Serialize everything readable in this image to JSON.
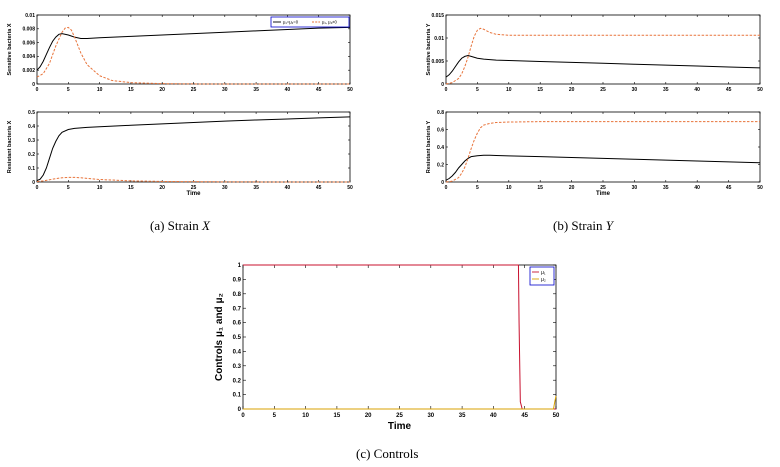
{
  "figure": {
    "captions": {
      "a_prefix": "(a)  Strain ",
      "a_var": "X",
      "b_prefix": "(b)  Strain ",
      "b_var": "Y",
      "c": "(c)  Controls"
    },
    "colors": {
      "black": "#000000",
      "orange": "#e8743b",
      "red": "#c8102e",
      "gold": "#d9a000",
      "legend_border": "#0000cc"
    }
  },
  "chart_data": [
    {
      "id": "a-top",
      "type": "line",
      "ylabel": "Sensitive bacteria X",
      "xlabel": "",
      "xlim": [
        0,
        50
      ],
      "ylim": [
        0,
        0.01
      ],
      "xticks": [
        0,
        5,
        10,
        15,
        20,
        25,
        30,
        35,
        40,
        45,
        50
      ],
      "yticks": [
        0,
        0.002,
        0.004,
        0.006,
        0.008,
        0.01
      ],
      "ytick_labels": [
        "0",
        "0.002",
        "0.004",
        "0.006",
        "0.008",
        "0.01"
      ],
      "legend": [
        "μ₁=μ₂=0",
        "μ₁, μ₂≠0"
      ],
      "series": [
        {
          "name": "μ₁=μ₂=0",
          "style": "solid",
          "color": "#000000",
          "x": [
            0,
            0.5,
            1,
            1.5,
            2,
            2.5,
            3,
            3.5,
            4,
            5,
            6,
            7,
            8,
            10,
            15,
            20,
            25,
            30,
            35,
            40,
            45,
            50
          ],
          "y": [
            0.002,
            0.0025,
            0.0033,
            0.0043,
            0.0053,
            0.0062,
            0.0068,
            0.0072,
            0.0073,
            0.0071,
            0.0068,
            0.0066,
            0.0066,
            0.0067,
            0.0069,
            0.0071,
            0.0073,
            0.0075,
            0.0077,
            0.0079,
            0.0081,
            0.0082
          ]
        },
        {
          "name": "μ₁, μ₂≠0",
          "style": "dashed",
          "color": "#e8743b",
          "x": [
            0,
            1,
            2,
            3,
            4,
            4.5,
            5,
            5.5,
            6,
            7,
            8,
            10,
            12,
            15,
            20,
            25,
            30,
            40,
            50
          ],
          "y": [
            0.001,
            0.0015,
            0.003,
            0.0055,
            0.0075,
            0.0081,
            0.0082,
            0.0078,
            0.0068,
            0.0045,
            0.0028,
            0.0012,
            0.0005,
            0.0002,
            5e-05,
            1e-05,
            0,
            0,
            0
          ]
        }
      ]
    },
    {
      "id": "a-bottom",
      "type": "line",
      "ylabel": "Resistant bacteria X",
      "xlabel": "Time",
      "xlim": [
        0,
        50
      ],
      "ylim": [
        0,
        0.5
      ],
      "xticks": [
        0,
        5,
        10,
        15,
        20,
        25,
        30,
        35,
        40,
        45,
        50
      ],
      "yticks": [
        0,
        0.1,
        0.2,
        0.3,
        0.4,
        0.5
      ],
      "ytick_labels": [
        "0",
        "0.1",
        "0.2",
        "0.3",
        "0.4",
        "0.5"
      ],
      "series": [
        {
          "style": "solid",
          "color": "#000000",
          "x": [
            0,
            0.5,
            1,
            1.5,
            2,
            2.5,
            3,
            3.5,
            4,
            5,
            6,
            7,
            8,
            10,
            15,
            20,
            25,
            30,
            35,
            40,
            45,
            50
          ],
          "y": [
            0.01,
            0.02,
            0.05,
            0.1,
            0.17,
            0.24,
            0.29,
            0.33,
            0.355,
            0.375,
            0.383,
            0.387,
            0.39,
            0.395,
            0.405,
            0.415,
            0.425,
            0.435,
            0.443,
            0.45,
            0.458,
            0.465
          ]
        },
        {
          "style": "dashed",
          "color": "#e8743b",
          "x": [
            0,
            1,
            2,
            3,
            4,
            5,
            6,
            7,
            8,
            10,
            15,
            20,
            30,
            40,
            50
          ],
          "y": [
            0.003,
            0.008,
            0.016,
            0.024,
            0.03,
            0.033,
            0.033,
            0.03,
            0.026,
            0.018,
            0.008,
            0.004,
            0.001,
            0,
            0
          ]
        }
      ]
    },
    {
      "id": "b-top",
      "type": "line",
      "ylabel": "Sensitive bacteria Y",
      "xlabel": "",
      "xlim": [
        0,
        50
      ],
      "ylim": [
        0,
        0.015
      ],
      "xticks": [
        0,
        5,
        10,
        15,
        20,
        25,
        30,
        35,
        40,
        45,
        50
      ],
      "yticks": [
        0,
        0.005,
        0.01,
        0.015
      ],
      "ytick_labels": [
        "0",
        "0.005",
        "0.01",
        "0.015"
      ],
      "series": [
        {
          "style": "solid",
          "color": "#000000",
          "x": [
            0,
            0.5,
            1,
            1.5,
            2,
            2.5,
            3,
            3.5,
            4,
            5,
            6,
            8,
            10,
            15,
            20,
            25,
            30,
            35,
            40,
            45,
            50
          ],
          "y": [
            0.0015,
            0.002,
            0.0028,
            0.0038,
            0.0048,
            0.0056,
            0.006,
            0.0062,
            0.006,
            0.0056,
            0.0054,
            0.0052,
            0.0051,
            0.0049,
            0.0047,
            0.0045,
            0.0043,
            0.0041,
            0.0039,
            0.0037,
            0.0035
          ]
        },
        {
          "style": "dashed",
          "color": "#e8743b",
          "x": [
            0,
            1,
            2,
            2.5,
            3,
            3.5,
            4,
            4.5,
            5,
            5.5,
            6,
            7,
            8,
            10,
            15,
            20,
            30,
            40,
            50
          ],
          "y": [
            0,
            0.0003,
            0.0012,
            0.0022,
            0.0038,
            0.0058,
            0.0082,
            0.0104,
            0.0117,
            0.0121,
            0.0119,
            0.0112,
            0.0108,
            0.0106,
            0.0106,
            0.0106,
            0.0106,
            0.0106,
            0.0106
          ]
        }
      ]
    },
    {
      "id": "b-bottom",
      "type": "line",
      "ylabel": "Resistant bacteria Y",
      "xlabel": "Time",
      "xlim": [
        0,
        50
      ],
      "ylim": [
        0,
        0.8
      ],
      "xticks": [
        0,
        5,
        10,
        15,
        20,
        25,
        30,
        35,
        40,
        45,
        50
      ],
      "yticks": [
        0,
        0.2,
        0.4,
        0.6,
        0.8
      ],
      "ytick_labels": [
        "0",
        "0.2",
        "0.4",
        "0.6",
        "0.8"
      ],
      "series": [
        {
          "style": "solid",
          "color": "#000000",
          "x": [
            0,
            0.5,
            1,
            1.5,
            2,
            2.5,
            3,
            3.5,
            4,
            5,
            6,
            7,
            8,
            10,
            15,
            20,
            25,
            30,
            35,
            40,
            45,
            50
          ],
          "y": [
            0.02,
            0.04,
            0.07,
            0.11,
            0.16,
            0.2,
            0.24,
            0.27,
            0.29,
            0.3,
            0.305,
            0.305,
            0.303,
            0.298,
            0.29,
            0.28,
            0.27,
            0.26,
            0.25,
            0.24,
            0.23,
            0.22
          ]
        },
        {
          "style": "dashed",
          "color": "#e8743b",
          "x": [
            0,
            1,
            2,
            2.5,
            3,
            3.5,
            4,
            4.5,
            5,
            5.5,
            6,
            7,
            8,
            10,
            15,
            20,
            30,
            40,
            50
          ],
          "y": [
            0,
            0.01,
            0.05,
            0.1,
            0.17,
            0.27,
            0.38,
            0.48,
            0.56,
            0.62,
            0.65,
            0.67,
            0.68,
            0.685,
            0.69,
            0.69,
            0.69,
            0.69,
            0.69
          ]
        }
      ]
    },
    {
      "id": "c",
      "type": "line",
      "ylabel": "Controls μ₁ and μ₂",
      "xlabel": "Time",
      "xlim": [
        0,
        50
      ],
      "ylim": [
        0,
        1
      ],
      "xticks": [
        0,
        5,
        10,
        15,
        20,
        25,
        30,
        35,
        40,
        45,
        50
      ],
      "yticks": [
        0,
        0.1,
        0.2,
        0.3,
        0.4,
        0.5,
        0.6,
        0.7,
        0.8,
        0.9,
        1
      ],
      "ytick_labels": [
        "0",
        "0.1",
        "0.2",
        "0.3",
        "0.4",
        "0.5",
        "0.6",
        "0.7",
        "0.8",
        "0.9",
        "1"
      ],
      "legend": [
        "μ₁",
        "μ₂"
      ],
      "series": [
        {
          "name": "μ₁",
          "style": "solid",
          "color": "#c8102e",
          "x": [
            0,
            44,
            44.1,
            44.3,
            44.6,
            50
          ],
          "y": [
            1,
            1,
            0.6,
            0.05,
            0,
            0
          ]
        },
        {
          "name": "μ₂",
          "style": "solid",
          "color": "#d9a000",
          "x": [
            0,
            49.6,
            49.8,
            50
          ],
          "y": [
            0,
            0,
            0.05,
            0.09
          ]
        }
      ]
    }
  ]
}
